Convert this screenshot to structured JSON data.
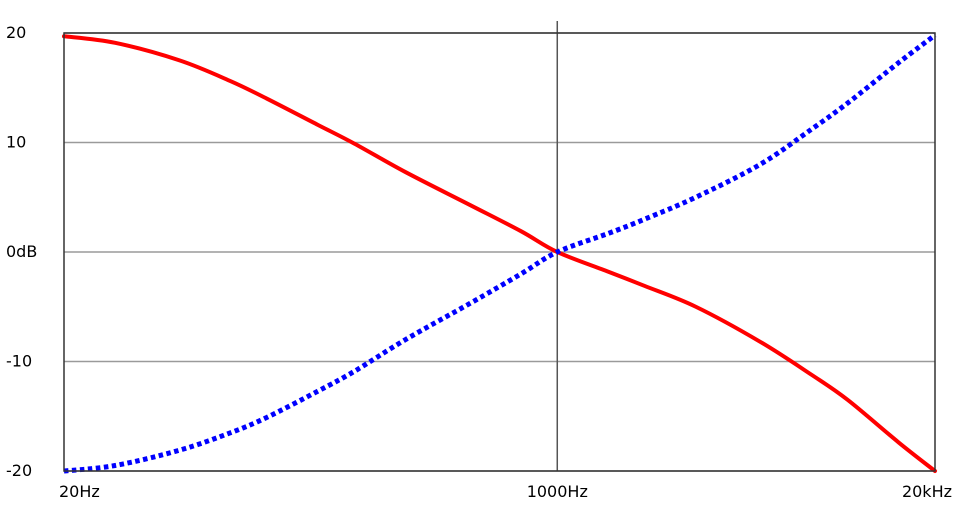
{
  "chart_data": {
    "type": "line",
    "title": "",
    "xlabel": "",
    "ylabel": "",
    "x_scale": "log",
    "xlim": [
      20,
      20000
    ],
    "ylim": [
      -20,
      20
    ],
    "grid": true,
    "legend": "none",
    "x_ticks": [
      {
        "value": 20,
        "label": "20Hz"
      },
      {
        "value": 1000,
        "label": "1000Hz"
      },
      {
        "value": 20000,
        "label": "20kHz"
      }
    ],
    "y_ticks": [
      {
        "value": 20,
        "label": "20"
      },
      {
        "value": 10,
        "label": "10"
      },
      {
        "value": 0,
        "label": "0dB"
      },
      {
        "value": -10,
        "label": "-10"
      },
      {
        "value": -20,
        "label": "-20"
      }
    ],
    "series": [
      {
        "color": "#ff0000",
        "style": "solid",
        "x": [
          20,
          30,
          50,
          75,
          100,
          150,
          200,
          300,
          500,
          750,
          1000,
          1500,
          2000,
          3000,
          5000,
          7500,
          10000,
          15000,
          20000
        ],
        "y": [
          19.7,
          19.1,
          17.5,
          15.6,
          14.0,
          11.6,
          9.9,
          7.3,
          4.3,
          1.9,
          0.0,
          -1.8,
          -3.1,
          -5.0,
          -8.2,
          -11.2,
          -13.5,
          -17.4,
          -20.0
        ]
      },
      {
        "color": "#0000ff",
        "style": "dotted",
        "x": [
          20,
          30,
          50,
          75,
          100,
          150,
          200,
          300,
          500,
          750,
          1000,
          1500,
          2000,
          3000,
          5000,
          7500,
          10000,
          15000,
          20000
        ],
        "y": [
          -20.0,
          -19.5,
          -18.1,
          -16.5,
          -15.1,
          -12.7,
          -10.9,
          -8.0,
          -4.7,
          -2.0,
          0.0,
          1.7,
          3.0,
          5.0,
          8.0,
          11.2,
          13.6,
          17.3,
          19.8
        ]
      }
    ]
  }
}
